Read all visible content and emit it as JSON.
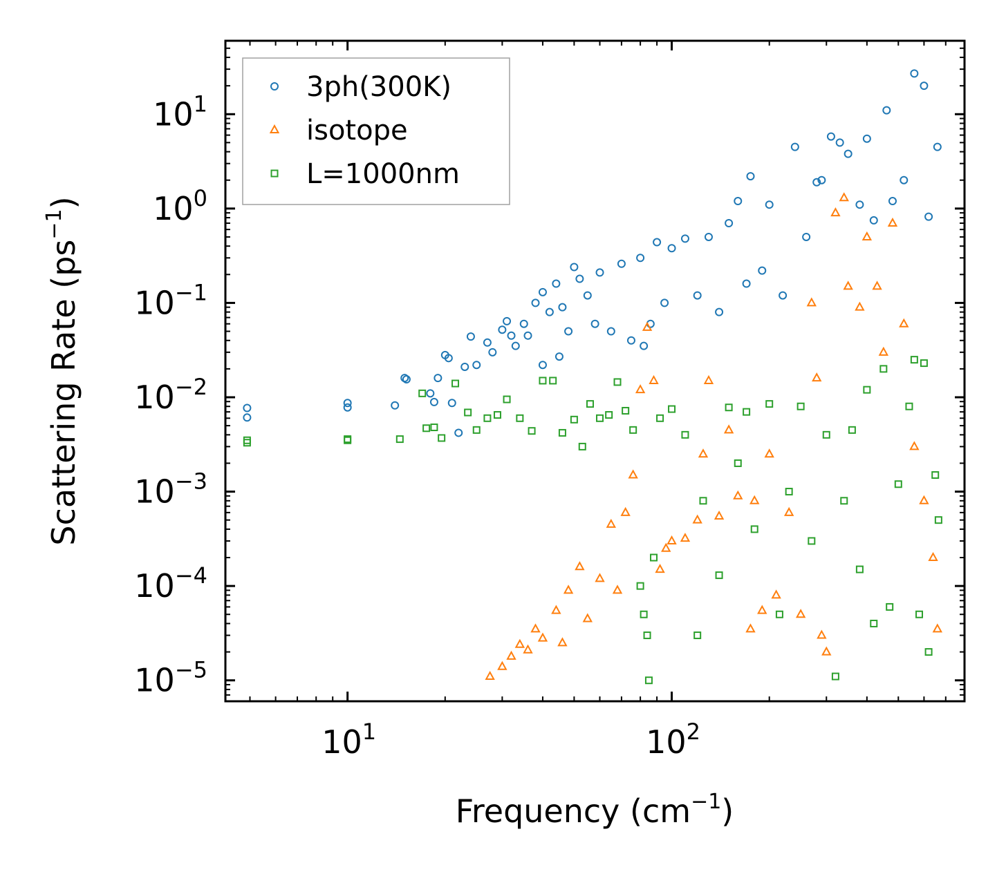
{
  "chart_data": {
    "type": "scatter",
    "xlabel": "Frequency (cm",
    "xlabel_sup": "−1",
    "xlabel_close": ")",
    "ylabel": "Scattering Rate (ps",
    "ylabel_sup": "−1",
    "ylabel_close": ")",
    "xscale": "log",
    "yscale": "log",
    "xlim": [
      4.2,
      800
    ],
    "ylim": [
      6e-06,
      60
    ],
    "x_ticks": [
      {
        "value": 10,
        "base": "10",
        "exp": "1"
      },
      {
        "value": 100,
        "base": "10",
        "exp": "2"
      }
    ],
    "y_ticks": [
      {
        "value": 10,
        "base": "10",
        "exp": "1"
      },
      {
        "value": 1,
        "base": "10",
        "exp": "0"
      },
      {
        "value": 0.1,
        "base": "10",
        "exp": "−1"
      },
      {
        "value": 0.01,
        "base": "10",
        "exp": "−2"
      },
      {
        "value": 0.001,
        "base": "10",
        "exp": "−3"
      },
      {
        "value": 0.0001,
        "base": "10",
        "exp": "−4"
      },
      {
        "value": 1e-05,
        "base": "10",
        "exp": "−5"
      }
    ],
    "legend": {
      "position": "top-left"
    },
    "series": [
      {
        "name": "3ph(300K)",
        "marker": "circle",
        "color": "#1f77b4",
        "points": [
          [
            4.9,
            0.0077
          ],
          [
            4.9,
            0.0061
          ],
          [
            10.0,
            0.0087
          ],
          [
            10.0,
            0.0078
          ],
          [
            14.0,
            0.0082
          ],
          [
            15.0,
            0.016
          ],
          [
            15.2,
            0.0155
          ],
          [
            18.0,
            0.011
          ],
          [
            18.5,
            0.0089
          ],
          [
            19.0,
            0.016
          ],
          [
            20.0,
            0.028
          ],
          [
            20.5,
            0.026
          ],
          [
            21.0,
            0.0087
          ],
          [
            22.0,
            0.0042
          ],
          [
            23.0,
            0.021
          ],
          [
            24.0,
            0.044
          ],
          [
            25.0,
            0.022
          ],
          [
            27.0,
            0.038
          ],
          [
            28.0,
            0.03
          ],
          [
            30.0,
            0.052
          ],
          [
            31.0,
            0.064
          ],
          [
            32.0,
            0.045
          ],
          [
            33.0,
            0.035
          ],
          [
            35.0,
            0.06
          ],
          [
            36.0,
            0.045
          ],
          [
            38.0,
            0.1
          ],
          [
            40.0,
            0.022
          ],
          [
            40.0,
            0.13
          ],
          [
            42.0,
            0.08
          ],
          [
            44.0,
            0.16
          ],
          [
            45.0,
            0.027
          ],
          [
            46.0,
            0.09
          ],
          [
            48.0,
            0.05
          ],
          [
            50.0,
            0.24
          ],
          [
            52.0,
            0.18
          ],
          [
            55.0,
            0.12
          ],
          [
            58.0,
            0.06
          ],
          [
            60.0,
            0.21
          ],
          [
            65.0,
            0.05
          ],
          [
            70.0,
            0.26
          ],
          [
            75.0,
            0.04
          ],
          [
            80.0,
            0.3
          ],
          [
            82.0,
            0.035
          ],
          [
            86.0,
            0.06
          ],
          [
            90.0,
            0.44
          ],
          [
            95.0,
            0.1
          ],
          [
            100.0,
            0.38
          ],
          [
            110.0,
            0.48
          ],
          [
            120.0,
            0.12
          ],
          [
            130.0,
            0.5
          ],
          [
            140.0,
            0.08
          ],
          [
            150.0,
            0.7
          ],
          [
            160.0,
            1.2
          ],
          [
            170.0,
            0.16
          ],
          [
            175.0,
            2.2
          ],
          [
            190.0,
            0.22
          ],
          [
            200.0,
            1.1
          ],
          [
            220.0,
            0.12
          ],
          [
            240.0,
            4.5
          ],
          [
            260.0,
            0.5
          ],
          [
            280.0,
            1.9
          ],
          [
            290.0,
            2.0
          ],
          [
            310.0,
            5.8
          ],
          [
            330.0,
            5.0
          ],
          [
            350.0,
            3.8
          ],
          [
            380.0,
            1.1
          ],
          [
            400.0,
            5.5
          ],
          [
            420.0,
            0.75
          ],
          [
            460.0,
            11.0
          ],
          [
            480.0,
            1.2
          ],
          [
            520.0,
            2.0
          ],
          [
            560.0,
            27.0
          ],
          [
            600.0,
            20.0
          ],
          [
            620.0,
            0.82
          ],
          [
            660.0,
            4.5
          ]
        ]
      },
      {
        "name": "isotope",
        "marker": "triangle",
        "color": "#ff7f0e",
        "points": [
          [
            27.5,
            1.1e-05
          ],
          [
            30.0,
            1.4e-05
          ],
          [
            32.0,
            1.8e-05
          ],
          [
            34.0,
            2.4e-05
          ],
          [
            36.0,
            2.1e-05
          ],
          [
            38.0,
            3.5e-05
          ],
          [
            40.0,
            2.8e-05
          ],
          [
            44.0,
            5.5e-05
          ],
          [
            46.0,
            2.5e-05
          ],
          [
            48.0,
            9e-05
          ],
          [
            52.0,
            0.00016
          ],
          [
            55.0,
            4.5e-05
          ],
          [
            60.0,
            0.00012
          ],
          [
            65.0,
            0.00045
          ],
          [
            68.0,
            9e-05
          ],
          [
            72.0,
            0.0006
          ],
          [
            76.0,
            0.0015
          ],
          [
            80.0,
            0.012
          ],
          [
            84.0,
            0.055
          ],
          [
            88.0,
            0.015
          ],
          [
            92.0,
            0.00015
          ],
          [
            96.0,
            0.00025
          ],
          [
            100.0,
            0.0003
          ],
          [
            110.0,
            0.00032
          ],
          [
            120.0,
            0.0005
          ],
          [
            125.0,
            0.0025
          ],
          [
            130.0,
            0.015
          ],
          [
            140.0,
            0.00055
          ],
          [
            150.0,
            0.0045
          ],
          [
            160.0,
            0.0009
          ],
          [
            175.0,
            3.5e-05
          ],
          [
            180.0,
            0.0008
          ],
          [
            190.0,
            5.5e-05
          ],
          [
            200.0,
            0.0025
          ],
          [
            210.0,
            8e-05
          ],
          [
            230.0,
            0.0006
          ],
          [
            250.0,
            5e-05
          ],
          [
            270.0,
            0.1
          ],
          [
            280.0,
            0.016
          ],
          [
            290.0,
            3e-05
          ],
          [
            300.0,
            2e-05
          ],
          [
            320.0,
            0.9
          ],
          [
            340.0,
            1.3
          ],
          [
            350.0,
            0.15
          ],
          [
            380.0,
            0.09
          ],
          [
            400.0,
            0.5
          ],
          [
            430.0,
            0.15
          ],
          [
            450.0,
            0.03
          ],
          [
            480.0,
            0.7
          ],
          [
            520.0,
            0.06
          ],
          [
            560.0,
            0.003
          ],
          [
            600.0,
            0.0008
          ],
          [
            640.0,
            0.0002
          ],
          [
            660.0,
            3.5e-05
          ]
        ]
      },
      {
        "name": "L=1000nm",
        "marker": "square",
        "color": "#2ca02c",
        "points": [
          [
            4.9,
            0.0035
          ],
          [
            4.9,
            0.0033
          ],
          [
            10.0,
            0.0036
          ],
          [
            10.0,
            0.0035
          ],
          [
            14.5,
            0.0036
          ],
          [
            17.0,
            0.011
          ],
          [
            17.5,
            0.0047
          ],
          [
            18.5,
            0.0048
          ],
          [
            19.5,
            0.0037
          ],
          [
            21.5,
            0.014
          ],
          [
            23.5,
            0.0069
          ],
          [
            25.0,
            0.0045
          ],
          [
            27.0,
            0.006
          ],
          [
            29.0,
            0.0065
          ],
          [
            31.0,
            0.0095
          ],
          [
            34.0,
            0.006
          ],
          [
            37.0,
            0.0044
          ],
          [
            40.0,
            0.015
          ],
          [
            43.0,
            0.015
          ],
          [
            46.0,
            0.0042
          ],
          [
            50.0,
            0.0058
          ],
          [
            53.0,
            0.003
          ],
          [
            56.0,
            0.0085
          ],
          [
            60.0,
            0.006
          ],
          [
            64.0,
            0.0065
          ],
          [
            68.0,
            0.0145
          ],
          [
            72.0,
            0.0072
          ],
          [
            76.0,
            0.0045
          ],
          [
            80.0,
            0.0001
          ],
          [
            82.0,
            5e-05
          ],
          [
            84.0,
            3e-05
          ],
          [
            85.0,
            1e-05
          ],
          [
            88.0,
            0.0002
          ],
          [
            92.0,
            0.006
          ],
          [
            100.0,
            0.0075
          ],
          [
            110.0,
            0.004
          ],
          [
            120.0,
            3e-05
          ],
          [
            125.0,
            0.0008
          ],
          [
            140.0,
            0.00013
          ],
          [
            150.0,
            0.0078
          ],
          [
            160.0,
            0.002
          ],
          [
            170.0,
            0.007
          ],
          [
            180.0,
            0.0004
          ],
          [
            200.0,
            0.0085
          ],
          [
            215.0,
            5e-05
          ],
          [
            230.0,
            0.001
          ],
          [
            250.0,
            0.008
          ],
          [
            270.0,
            0.0003
          ],
          [
            300.0,
            0.004
          ],
          [
            320.0,
            1.1e-05
          ],
          [
            340.0,
            0.0008
          ],
          [
            360.0,
            0.0045
          ],
          [
            380.0,
            0.00015
          ],
          [
            400.0,
            0.012
          ],
          [
            420.0,
            4e-05
          ],
          [
            450.0,
            0.02
          ],
          [
            470.0,
            6e-05
          ],
          [
            500.0,
            0.0012
          ],
          [
            540.0,
            0.008
          ],
          [
            560.0,
            0.025
          ],
          [
            580.0,
            5e-05
          ],
          [
            600.0,
            0.023
          ],
          [
            620.0,
            2e-05
          ],
          [
            650.0,
            0.0015
          ],
          [
            665.0,
            0.0005
          ]
        ]
      }
    ]
  }
}
